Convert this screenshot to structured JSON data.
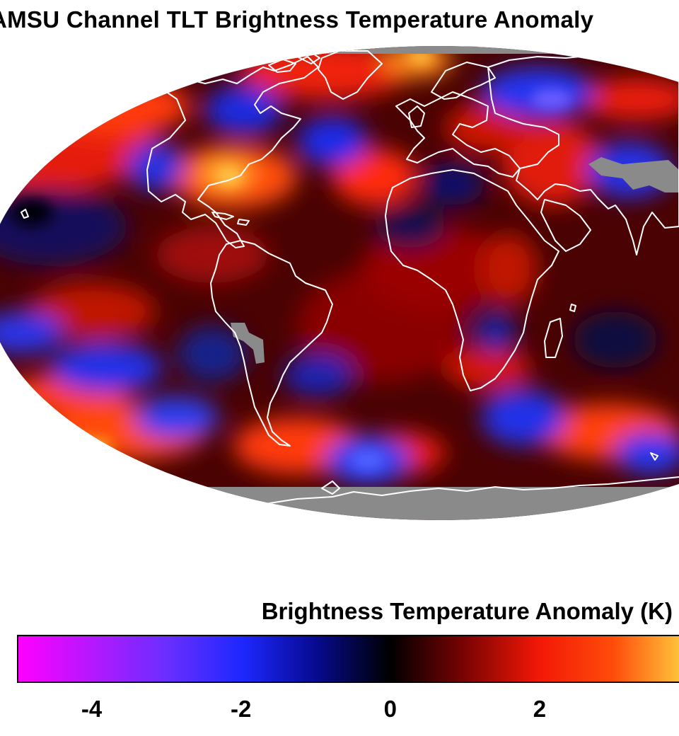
{
  "title": "AMSU Channel TLT Brightness Temperature Anomaly",
  "colorbar": {
    "label": "Brightness Temperature Anomaly (K)",
    "min": -5,
    "max": 4,
    "ticks": [
      {
        "value": -4,
        "label": "-4"
      },
      {
        "value": -2,
        "label": "-2"
      },
      {
        "value": 0,
        "label": "0"
      },
      {
        "value": 2,
        "label": "2"
      }
    ],
    "colormap": [
      {
        "value": -5,
        "color": "#ff00ff"
      },
      {
        "value": -3,
        "color": "#6a2eff"
      },
      {
        "value": -2,
        "color": "#1e28ff"
      },
      {
        "value": -1,
        "color": "#070a90"
      },
      {
        "value": 0,
        "color": "#000000"
      },
      {
        "value": 1,
        "color": "#7a0303"
      },
      {
        "value": 2,
        "color": "#f21806"
      },
      {
        "value": 3,
        "color": "#ff4c0a"
      },
      {
        "value": 4,
        "color": "#ffd040"
      }
    ]
  },
  "map": {
    "projection": "mollweide",
    "no_data_color": "#8a8a8a",
    "coastline_color": "#ffffff"
  }
}
